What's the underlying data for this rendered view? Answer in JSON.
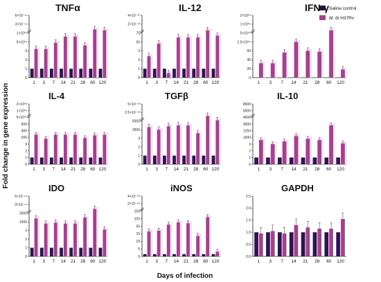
{
  "figure": {
    "ylabel": "Fold change in gene expression",
    "xlabel": "Days of infection",
    "legend": [
      {
        "label": "Saline control",
        "color": "#2e1450",
        "italic_prefix": ""
      },
      {
        "label": " H37Rv",
        "color": "#a0438c",
        "italic_prefix": "M. tb"
      }
    ],
    "colors": {
      "control": "#2e1450",
      "treated": "#a0438c",
      "bg_band": "#f7dff2",
      "highlight": "#e0106f"
    }
  },
  "chart_data": [
    {
      "type": "bar",
      "title": "TNFα",
      "categories": [
        "1",
        "3",
        "7",
        "14",
        "21",
        "28",
        "60",
        "120"
      ],
      "y_ticks": [
        "6×10⁻¹¹",
        "3×10⁻¹¹",
        "1×10⁰⁵",
        "5×10⁰⁴",
        "3",
        "2",
        "1",
        "0"
      ],
      "series": [
        {
          "name": "Saline control",
          "values": [
            1,
            1,
            1,
            1,
            1,
            1,
            1,
            1
          ]
        },
        {
          "name": "M. tb H37Rv",
          "values": [
            3.2,
            3.2,
            3.9,
            4.6,
            4.6,
            3.6,
            5.4,
            5.3
          ]
        }
      ]
    },
    {
      "type": "bar",
      "title": "IL-12",
      "categories": [
        "1",
        "3",
        "7",
        "14",
        "21",
        "28",
        "60",
        "120"
      ],
      "y_ticks": [
        "4×10⁻¹⁰",
        "2×10⁻¹⁰",
        "75",
        "50",
        "3",
        "2",
        "1",
        "0"
      ],
      "series": [
        {
          "name": "Saline control",
          "values": [
            1,
            1,
            1,
            1,
            1,
            1,
            1,
            1
          ]
        },
        {
          "name": "M. tb H37Rv",
          "values": [
            2.4,
            3.8,
            0.5,
            4.5,
            4.5,
            4.5,
            5.3,
            4.7
          ]
        }
      ]
    },
    {
      "type": "bar",
      "title": "IFN-γ",
      "categories": [
        "1",
        "3",
        "7",
        "14",
        "21",
        "28",
        "60",
        "120"
      ],
      "y_ticks": [
        "2×10⁰⁶",
        "1×10⁰⁶",
        "5×10⁰⁴",
        "2.5×10⁰⁴",
        "60",
        "40",
        "20",
        "0"
      ],
      "series": [
        {
          "name": "Saline control",
          "values": [
            0,
            0,
            0,
            0,
            0,
            0,
            0,
            0
          ]
        },
        {
          "name": "M. tb H37Rv",
          "values": [
            1.6,
            1.6,
            2.8,
            4.0,
            3.0,
            2.9,
            5.3,
            0.9
          ]
        }
      ]
    },
    {
      "type": "bar",
      "title": "IL-4",
      "categories": [
        "1",
        "3",
        "7",
        "14",
        "21",
        "28",
        "60",
        "120"
      ],
      "y_ticks": [
        "2×10⁰⁸",
        "1×10⁰⁶",
        "5×10⁰⁴",
        "600",
        "400",
        "200",
        "3",
        "2",
        "1",
        "0"
      ],
      "series": [
        {
          "name": "Saline control",
          "values": [
            1,
            1,
            1,
            1,
            1,
            1,
            1,
            1
          ]
        },
        {
          "name": "M. tb H37Rv",
          "values": [
            4.4,
            3.8,
            4.4,
            4.4,
            4.4,
            3.9,
            4.3,
            4.4
          ]
        }
      ]
    },
    {
      "type": "bar",
      "title": "TGFβ",
      "categories": [
        "1",
        "3",
        "7",
        "14",
        "21",
        "28",
        "60",
        "120"
      ],
      "y_ticks": [
        "5×10⁻¹⁰",
        "2.5×10⁻¹⁰",
        "5000",
        "2500",
        "3",
        "2",
        "1",
        "0"
      ],
      "series": [
        {
          "name": "Saline control",
          "values": [
            1,
            1,
            1,
            1,
            1,
            1,
            1,
            1
          ]
        },
        {
          "name": "M. tb H37Rv",
          "values": [
            4.3,
            4.0,
            4.4,
            4.5,
            4.5,
            3.6,
            5.6,
            5.1
          ]
        }
      ]
    },
    {
      "type": "bar",
      "title": "IL-10",
      "categories": [
        "1",
        "3",
        "7",
        "14",
        "21",
        "28",
        "60",
        "120"
      ],
      "y_ticks": [
        "8000",
        "6000",
        "4500",
        "3000",
        "1250",
        "1000",
        "3",
        "2",
        "1",
        "0"
      ],
      "series": [
        {
          "name": "Saline control",
          "values": [
            1,
            1,
            1,
            1,
            1,
            1,
            1,
            1
          ]
        },
        {
          "name": "M. tb H37Rv",
          "values": [
            3.6,
            3.0,
            3.4,
            4.2,
            3.8,
            3.6,
            5.8,
            3.1
          ]
        }
      ]
    },
    {
      "type": "bar",
      "title": "IDO",
      "categories": [
        "1",
        "3",
        "7",
        "14",
        "21",
        "28",
        "60",
        "120"
      ],
      "y_ticks": [
        "6×10⁻¹⁴",
        "3×10⁻¹⁴",
        "2000",
        "1000",
        "3",
        "2",
        "1",
        "0"
      ],
      "series": [
        {
          "name": "Saline control",
          "values": [
            1,
            1,
            1,
            1,
            1,
            1,
            1,
            1
          ]
        },
        {
          "name": "M. tb H37Rv",
          "values": [
            4.4,
            3.8,
            3.9,
            3.8,
            3.8,
            4.5,
            5.5,
            3.1
          ]
        }
      ]
    },
    {
      "type": "bar",
      "title": "iNOS",
      "categories": [
        "1",
        "3",
        "7",
        "14",
        "21",
        "28",
        "60",
        "120"
      ],
      "y_ticks": [
        "4×10⁻⁰⁸",
        "2×10⁻⁰⁸",
        "150",
        "100",
        "50",
        "15",
        "10",
        "5",
        "0"
      ],
      "series": [
        {
          "name": "Saline control",
          "values": [
            0.3,
            0.3,
            0.3,
            0.3,
            0.3,
            0.3,
            0.3,
            0.3
          ]
        },
        {
          "name": "M. tb H37Rv",
          "values": [
            3.3,
            3.4,
            4.2,
            4.5,
            4.4,
            2.7,
            5.2,
            0.6
          ]
        }
      ]
    },
    {
      "type": "bar",
      "title": "GAPDH",
      "categories": [
        "1",
        "3",
        "7",
        "14",
        "21",
        "28",
        "60",
        "120"
      ],
      "ylim": [
        0,
        2.5
      ],
      "y_ticks": [
        "2.5",
        "2.0",
        "1.5",
        "1.0",
        "0.5",
        "0.0"
      ],
      "series": [
        {
          "name": "Saline control",
          "values": [
            1.0,
            1.0,
            1.0,
            1.0,
            1.0,
            1.0,
            1.0,
            1.0
          ]
        },
        {
          "name": "M. tb H37Rv",
          "values": [
            0.95,
            1.05,
            0.95,
            1.3,
            1.2,
            1.15,
            1.15,
            1.55
          ]
        }
      ]
    }
  ]
}
